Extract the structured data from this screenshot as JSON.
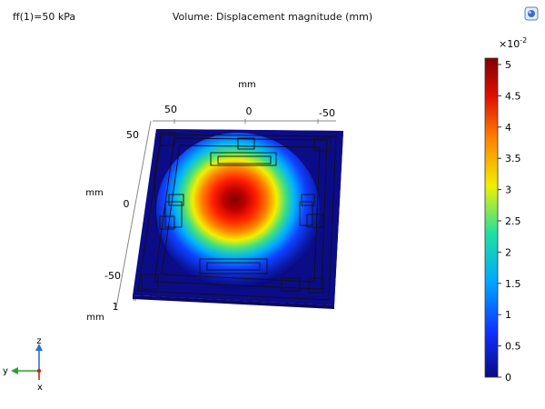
{
  "header": {
    "param_label": "ff(1)=50 kPa",
    "plot_title": "Volume: Displacement magnitude (mm)"
  },
  "toolbar": {
    "corner_icon": "render-settings-icon"
  },
  "axes": {
    "x_unit": "mm",
    "x_ticks": [
      "50",
      "0",
      "-50"
    ],
    "y_unit": "mm",
    "y_ticks": [
      "50",
      "0",
      "-50"
    ],
    "z_unit": "mm",
    "z_ticks": [
      "1"
    ]
  },
  "colorbar": {
    "multiplier_base": "×10",
    "multiplier_exp": "-2",
    "ticks": [
      "5",
      "4.5",
      "4",
      "3.5",
      "3",
      "2.5",
      "2",
      "1.5",
      "1",
      "0.5",
      "0"
    ],
    "colors": [
      "#0a0a80",
      "#1030ff",
      "#00c0ff",
      "#20e0a0",
      "#f0f000",
      "#ff8000",
      "#e01000",
      "#800000"
    ]
  },
  "triad": {
    "z": "z",
    "y": "y",
    "x": "x"
  }
}
